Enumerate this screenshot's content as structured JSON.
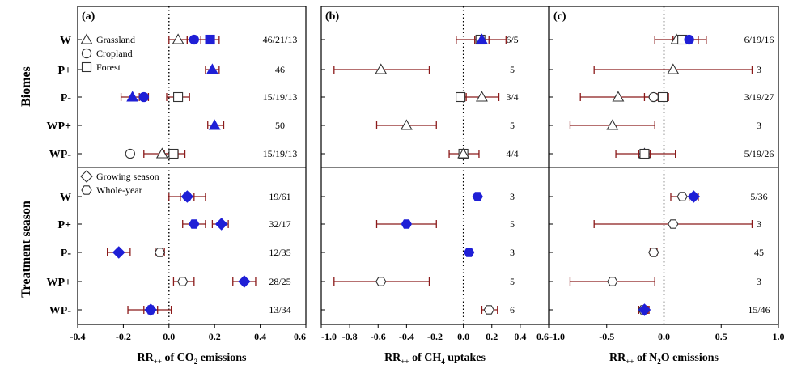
{
  "figure": {
    "group_labels": [
      "Biomes",
      "Treatment season"
    ],
    "row_labels": [
      "W",
      "P+",
      "P-",
      "WP+",
      "WP-",
      "W",
      "P+",
      "P-",
      "WP+",
      "WP-"
    ],
    "legend": [
      {
        "shape": "triangle",
        "label": "Grassland"
      },
      {
        "shape": "circle",
        "label": "Cropland"
      },
      {
        "shape": "square",
        "label": "Forest"
      },
      {
        "shape": "diamond",
        "label": "Growing season"
      },
      {
        "shape": "hexagon",
        "label": "Whole-year"
      }
    ],
    "colors": {
      "filled": "#1f1fd6",
      "errorbar": "#8b1a1a",
      "open": "#ffffff"
    }
  },
  "chart_data": [
    {
      "type": "scatter",
      "panel_label": "(a)",
      "xlabel": "RR++ of CO2 emissions",
      "xlabel_display": {
        "main": "RR",
        "sub": "++",
        "mid": " of CO",
        "sub2": "2",
        "end": " emissions"
      },
      "xlim": [
        -0.4,
        0.6
      ],
      "xticks": [
        -0.4,
        -0.2,
        0.0,
        0.2,
        0.4,
        0.6
      ],
      "xtick_labels": [
        "-0.4",
        "-0.2",
        "0.0",
        "0.2",
        "0.4",
        "0.6"
      ],
      "rows": [
        {
          "label": "W",
          "count_text": "46/21/13",
          "points": [
            {
              "shape": "triangle",
              "filled": false,
              "x": 0.04,
              "lo": 0.0,
              "hi": 0.08
            },
            {
              "shape": "circle",
              "filled": true,
              "x": 0.11,
              "lo": 0.08,
              "hi": 0.14
            },
            {
              "shape": "square",
              "filled": true,
              "x": 0.18,
              "lo": 0.14,
              "hi": 0.22
            }
          ]
        },
        {
          "label": "P+",
          "count_text": "46",
          "points": [
            {
              "shape": "triangle",
              "filled": true,
              "x": 0.19,
              "lo": 0.16,
              "hi": 0.22
            }
          ]
        },
        {
          "label": "P-",
          "count_text": "15/19/13",
          "points": [
            {
              "shape": "triangle",
              "filled": true,
              "x": -0.16,
              "lo": -0.21,
              "hi": -0.12
            },
            {
              "shape": "circle",
              "filled": true,
              "x": -0.11,
              "lo": -0.13,
              "hi": -0.09
            },
            {
              "shape": "square",
              "filled": false,
              "x": 0.04,
              "lo": -0.01,
              "hi": 0.09
            }
          ]
        },
        {
          "label": "WP+",
          "count_text": "50",
          "points": [
            {
              "shape": "triangle",
              "filled": true,
              "x": 0.2,
              "lo": 0.17,
              "hi": 0.24
            }
          ]
        },
        {
          "label": "WP-",
          "count_text": "15/19/13",
          "points": [
            {
              "shape": "circle",
              "filled": false,
              "x": -0.17,
              "lo": -0.18,
              "hi": -0.16
            },
            {
              "shape": "triangle",
              "filled": false,
              "x": -0.03,
              "lo": -0.11,
              "hi": 0.04
            },
            {
              "shape": "square",
              "filled": false,
              "x": 0.02,
              "lo": -0.02,
              "hi": 0.07
            }
          ]
        },
        {
          "label": "W",
          "count_text": "19/61",
          "points": [
            {
              "shape": "diamond",
              "filled": true,
              "x": 0.08,
              "lo": 0.05,
              "hi": 0.11
            },
            {
              "shape": "hexagon",
              "filled": true,
              "x": 0.08,
              "lo": 0.0,
              "hi": 0.16
            }
          ]
        },
        {
          "label": "P+",
          "count_text": "32/17",
          "points": [
            {
              "shape": "hexagon",
              "filled": true,
              "x": 0.11,
              "lo": 0.06,
              "hi": 0.16
            },
            {
              "shape": "diamond",
              "filled": true,
              "x": 0.23,
              "lo": 0.19,
              "hi": 0.26
            }
          ]
        },
        {
          "label": "P-",
          "count_text": "12/35",
          "points": [
            {
              "shape": "diamond",
              "filled": true,
              "x": -0.22,
              "lo": -0.27,
              "hi": -0.17
            },
            {
              "shape": "hexagon",
              "filled": false,
              "x": -0.04,
              "lo": -0.06,
              "hi": -0.02
            }
          ]
        },
        {
          "label": "WP+",
          "count_text": "28/25",
          "points": [
            {
              "shape": "hexagon",
              "filled": false,
              "x": 0.06,
              "lo": 0.02,
              "hi": 0.11
            },
            {
              "shape": "diamond",
              "filled": true,
              "x": 0.33,
              "lo": 0.28,
              "hi": 0.38
            }
          ]
        },
        {
          "label": "WP-",
          "count_text": "13/34",
          "points": [
            {
              "shape": "hexagon",
              "filled": true,
              "x": -0.08,
              "lo": -0.18,
              "hi": 0.01
            },
            {
              "shape": "diamond",
              "filled": true,
              "x": -0.08,
              "lo": -0.11,
              "hi": -0.05
            }
          ]
        }
      ]
    },
    {
      "type": "scatter",
      "panel_label": "(b)",
      "xlabel": "RR++ of CH4 uptakes",
      "xlabel_display": {
        "main": "RR",
        "sub": "++",
        "mid": " of CH",
        "sub2": "4",
        "end": " uptakes"
      },
      "xlim": [
        -1.0,
        0.6
      ],
      "xticks": [
        -1.0,
        -0.8,
        -0.6,
        -0.4,
        -0.2,
        0.0,
        0.2,
        0.4,
        0.6
      ],
      "xtick_labels": [
        "-1.0",
        "-0.8",
        "-0.6",
        "-0.4",
        "-0.2",
        "0.0",
        "0.2",
        "0.4",
        "0.6"
      ],
      "rows": [
        {
          "label": "W",
          "count_text": "6/5",
          "points": [
            {
              "shape": "square",
              "filled": false,
              "x": 0.12,
              "lo": -0.05,
              "hi": 0.3
            },
            {
              "shape": "triangle",
              "filled": true,
              "x": 0.13,
              "lo": 0.08,
              "hi": 0.18
            }
          ]
        },
        {
          "label": "P+",
          "count_text": "5",
          "points": [
            {
              "shape": "triangle",
              "filled": false,
              "x": -0.58,
              "lo": -0.91,
              "hi": -0.24
            }
          ]
        },
        {
          "label": "P-",
          "count_text": "3/4",
          "points": [
            {
              "shape": "square",
              "filled": false,
              "x": -0.02,
              "lo": -0.05,
              "hi": 0.02
            },
            {
              "shape": "triangle",
              "filled": false,
              "x": 0.13,
              "lo": 0.0,
              "hi": 0.25
            }
          ]
        },
        {
          "label": "WP+",
          "count_text": "5",
          "points": [
            {
              "shape": "triangle",
              "filled": false,
              "x": -0.4,
              "lo": -0.61,
              "hi": -0.19
            }
          ]
        },
        {
          "label": "WP-",
          "count_text": "4/4",
          "points": [
            {
              "shape": "square",
              "filled": false,
              "x": 0.0,
              "lo": -0.1,
              "hi": 0.11
            },
            {
              "shape": "triangle",
              "filled": false,
              "x": 0.0,
              "lo": -0.02,
              "hi": 0.02
            }
          ]
        },
        {
          "label": "W",
          "count_text": "3",
          "points": [
            {
              "shape": "hexagon",
              "filled": true,
              "x": 0.1,
              "lo": 0.1,
              "hi": 0.1
            }
          ]
        },
        {
          "label": "P+",
          "count_text": "5",
          "points": [
            {
              "shape": "hexagon",
              "filled": true,
              "x": -0.4,
              "lo": -0.61,
              "hi": -0.19
            }
          ]
        },
        {
          "label": "P-",
          "count_text": "3",
          "points": [
            {
              "shape": "hexagon",
              "filled": true,
              "x": 0.04,
              "lo": 0.04,
              "hi": 0.04
            }
          ]
        },
        {
          "label": "WP+",
          "count_text": "5",
          "points": [
            {
              "shape": "hexagon",
              "filled": false,
              "x": -0.58,
              "lo": -0.91,
              "hi": -0.24
            }
          ]
        },
        {
          "label": "WP-",
          "count_text": "6",
          "points": [
            {
              "shape": "hexagon",
              "filled": false,
              "x": 0.18,
              "lo": 0.13,
              "hi": 0.24
            }
          ]
        }
      ]
    },
    {
      "type": "scatter",
      "panel_label": "(c)",
      "xlabel": "RR++ of N2O emissions",
      "xlabel_display": {
        "main": "RR",
        "sub": "++",
        "mid": " of N",
        "sub2": "2",
        "end": "O emissions"
      },
      "xlim": [
        -1.0,
        1.0
      ],
      "xticks": [
        -1.0,
        -0.5,
        0.0,
        0.5,
        1.0
      ],
      "xtick_labels": [
        "-1.0",
        "-0.5",
        "0.0",
        "0.5",
        "1.0"
      ],
      "rows": [
        {
          "label": "W",
          "count_text": "6/19/16",
          "points": [
            {
              "shape": "triangle",
              "filled": false,
              "x": 0.11,
              "lo": -0.08,
              "hi": 0.3
            },
            {
              "shape": "square",
              "filled": false,
              "x": 0.16,
              "lo": 0.08,
              "hi": 0.24
            },
            {
              "shape": "circle",
              "filled": true,
              "x": 0.22,
              "lo": 0.08,
              "hi": 0.37
            }
          ]
        },
        {
          "label": "P+",
          "count_text": "3",
          "points": [
            {
              "shape": "triangle",
              "filled": false,
              "x": 0.08,
              "lo": -0.61,
              "hi": 0.77
            }
          ]
        },
        {
          "label": "P-",
          "count_text": "3/19/27",
          "points": [
            {
              "shape": "triangle",
              "filled": false,
              "x": -0.4,
              "lo": -0.73,
              "hi": -0.07
            },
            {
              "shape": "circle",
              "filled": false,
              "x": -0.09,
              "lo": -0.17,
              "hi": 0.0
            },
            {
              "shape": "square",
              "filled": false,
              "x": -0.01,
              "lo": -0.06,
              "hi": 0.04
            }
          ]
        },
        {
          "label": "WP+",
          "count_text": "3",
          "points": [
            {
              "shape": "triangle",
              "filled": false,
              "x": -0.45,
              "lo": -0.82,
              "hi": -0.08
            }
          ]
        },
        {
          "label": "WP-",
          "count_text": "5/19/26",
          "points": [
            {
              "shape": "triangle",
              "filled": false,
              "x": -0.17,
              "lo": -0.2,
              "hi": -0.13
            },
            {
              "shape": "circle",
              "filled": true,
              "x": -0.17,
              "lo": -0.42,
              "hi": 0.1
            },
            {
              "shape": "square",
              "filled": false,
              "x": -0.17,
              "lo": -0.22,
              "hi": -0.12
            }
          ]
        },
        {
          "label": "W",
          "count_text": "5/36",
          "points": [
            {
              "shape": "hexagon",
              "filled": false,
              "x": 0.16,
              "lo": 0.06,
              "hi": 0.26
            },
            {
              "shape": "diamond",
              "filled": true,
              "x": 0.26,
              "lo": 0.22,
              "hi": 0.3
            }
          ]
        },
        {
          "label": "P+",
          "count_text": "3",
          "points": [
            {
              "shape": "hexagon",
              "filled": false,
              "x": 0.08,
              "lo": -0.61,
              "hi": 0.77
            }
          ]
        },
        {
          "label": "P-",
          "count_text": "45",
          "points": [
            {
              "shape": "hexagon",
              "filled": false,
              "x": -0.09,
              "lo": -0.12,
              "hi": -0.06
            }
          ]
        },
        {
          "label": "WP+",
          "count_text": "3",
          "points": [
            {
              "shape": "hexagon",
              "filled": false,
              "x": -0.45,
              "lo": -0.82,
              "hi": -0.08
            }
          ]
        },
        {
          "label": "WP-",
          "count_text": "15/46",
          "points": [
            {
              "shape": "hexagon",
              "filled": false,
              "x": -0.18,
              "lo": -0.22,
              "hi": -0.13
            },
            {
              "shape": "diamond",
              "filled": true,
              "x": -0.17,
              "lo": -0.2,
              "hi": -0.14
            }
          ]
        }
      ]
    }
  ]
}
